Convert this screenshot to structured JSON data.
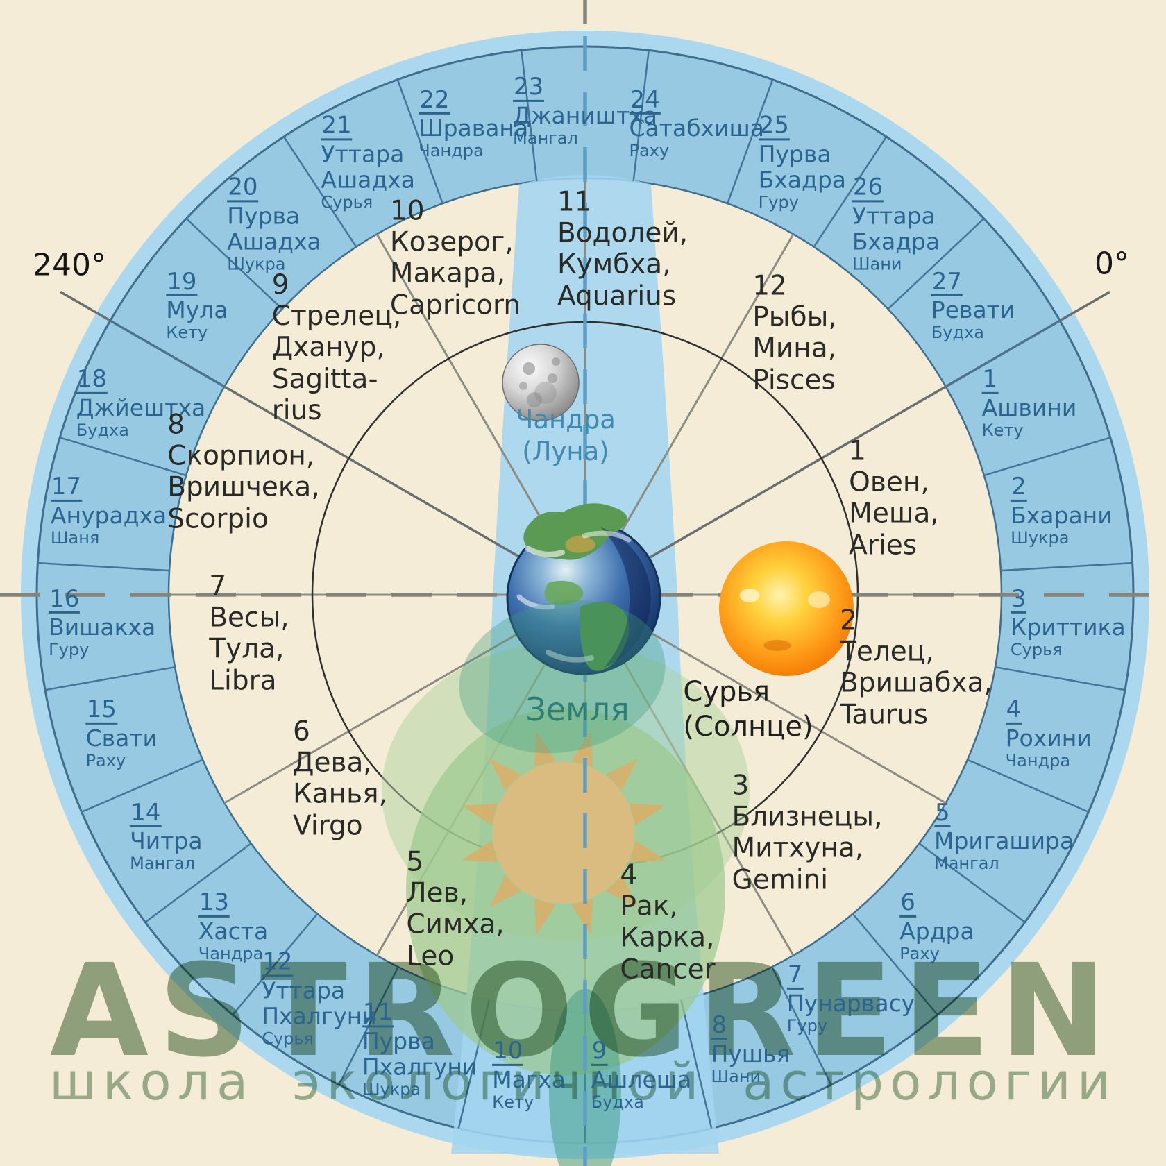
{
  "watermark": {
    "brand": "ASTROGREEN",
    "subtitle": "школа экологичной астрологии"
  },
  "angle_labels": {
    "left": "240°",
    "right": "0°"
  },
  "center": {
    "moon": [
      "Чандра",
      "(Луна)"
    ],
    "earth": "Земля",
    "sun": [
      "Сурья",
      "(Солнце)"
    ]
  },
  "colors": {
    "background_cream": "#f4ecd6",
    "ring_blue": "#98c9e3",
    "ring_outer_band": "#abd8ee",
    "beam_blue": "#a3d5f0",
    "ring_line_blue": "#3f6e8e",
    "sector_line_grey": "#8c8c82",
    "inner_circle_dark": "#2f2f2f",
    "nakshatra_text": "#2b648e",
    "zodiac_text": "#2a2a27",
    "watermark_green": "#88a084",
    "logo_leaf_green": "#9cc98f",
    "logo_sun_tan": "#debb7e",
    "logo_teal": "#3e9a7f"
  },
  "nakshatras": [
    {
      "num": "1",
      "name": "Ашвини",
      "ruler": "Кету"
    },
    {
      "num": "2",
      "name": "Бхарани",
      "ruler": "Шукра"
    },
    {
      "num": "3",
      "name": "Криттика",
      "ruler": "Сурья"
    },
    {
      "num": "4",
      "name": "Рохини",
      "ruler": "Чандра"
    },
    {
      "num": "5",
      "name": "Мригашира",
      "ruler": "Мангал"
    },
    {
      "num": "6",
      "name": "Ардра",
      "ruler": "Раху"
    },
    {
      "num": "7",
      "name": "Пунарвасу",
      "ruler": "Гуру"
    },
    {
      "num": "8",
      "name": "Пушья",
      "ruler": "Шани"
    },
    {
      "num": "9",
      "name": "Ашлеша",
      "ruler": "Будха"
    },
    {
      "num": "10",
      "name": "Магха",
      "ruler": "Кету"
    },
    {
      "num": "11",
      "name": "Пурва Пхалгуни",
      "ruler": "Шукра"
    },
    {
      "num": "12",
      "name": "Уттара Пхалгуни",
      "ruler": "Сурья"
    },
    {
      "num": "13",
      "name": "Хаста",
      "ruler": "Чандра"
    },
    {
      "num": "14",
      "name": "Читра",
      "ruler": "Мангал"
    },
    {
      "num": "15",
      "name": "Свати",
      "ruler": "Раху"
    },
    {
      "num": "16",
      "name": "Вишакха",
      "ruler": "Гуру"
    },
    {
      "num": "17",
      "name": "Анурадха",
      "ruler": "Шаня"
    },
    {
      "num": "18",
      "name": "Джйештха",
      "ruler": "Будха"
    },
    {
      "num": "19",
      "name": "Мула",
      "ruler": "Кету"
    },
    {
      "num": "20",
      "name": "Пурва Ашадха",
      "ruler": "Шукра"
    },
    {
      "num": "21",
      "name": "Уттара Ашадха",
      "ruler": "Сурья"
    },
    {
      "num": "22",
      "name": "Шравана",
      "ruler": "Чандра"
    },
    {
      "num": "23",
      "name": "Джаништха",
      "ruler": "Мангал"
    },
    {
      "num": "24",
      "name": "Сатабхиша",
      "ruler": "Раху"
    },
    {
      "num": "25",
      "name": "Пурва Бхадра",
      "ruler": "Гуру"
    },
    {
      "num": "26",
      "name": "Уттара Бхадра",
      "ruler": "Шани"
    },
    {
      "num": "27",
      "name": "Ревати",
      "ruler": "Будха"
    }
  ],
  "zodiac": [
    {
      "num": "1",
      "lines": [
        "Овен,",
        "Меша,",
        "Aries"
      ]
    },
    {
      "num": "2",
      "lines": [
        "Телец,",
        "Вришабха,",
        "Taurus"
      ]
    },
    {
      "num": "3",
      "lines": [
        "Близнецы,",
        "Митхуна,",
        "Gemini"
      ]
    },
    {
      "num": "4",
      "lines": [
        "Рак,",
        "Карка,",
        "Cancer"
      ]
    },
    {
      "num": "5",
      "lines": [
        "Лев,",
        "Симха,",
        "Leo"
      ]
    },
    {
      "num": "6",
      "lines": [
        "Дева,",
        "Канья,",
        "Virgo"
      ]
    },
    {
      "num": "7",
      "lines": [
        "Весы,",
        "Тула,",
        "Libra"
      ]
    },
    {
      "num": "8",
      "lines": [
        "Скорпион,",
        "Вришчека,",
        "Scorpio"
      ]
    },
    {
      "num": "9",
      "lines": [
        "Стрелец,",
        "Дханур,",
        "Sagitta-",
        "rius"
      ]
    },
    {
      "num": "10",
      "lines": [
        "Козерог,",
        "Макара,",
        "Capricorn"
      ]
    },
    {
      "num": "11",
      "lines": [
        "Водолей,",
        "Кумбха,",
        "Aquarius"
      ]
    },
    {
      "num": "12",
      "lines": [
        "Рыбы,",
        "Мина,",
        "Pisces"
      ]
    }
  ]
}
